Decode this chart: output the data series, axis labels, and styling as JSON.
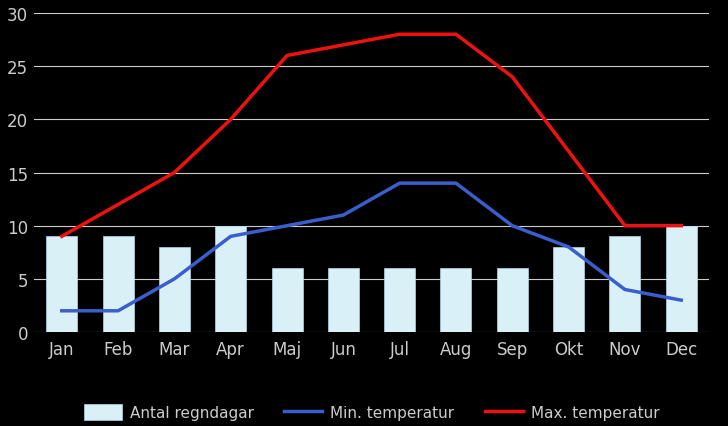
{
  "months": [
    "Jan",
    "Feb",
    "Mar",
    "Apr",
    "Maj",
    "Jun",
    "Jul",
    "Aug",
    "Sep",
    "Okt",
    "Nov",
    "Dec"
  ],
  "rain_days": [
    9,
    9,
    8,
    10,
    6,
    6,
    6,
    6,
    6,
    8,
    9,
    10
  ],
  "min_temp": [
    2,
    2,
    5,
    9,
    10,
    11,
    14,
    14,
    10,
    8,
    4,
    3
  ],
  "max_temp": [
    9,
    12,
    15,
    20,
    26,
    27,
    28,
    28,
    24,
    17,
    10,
    10
  ],
  "bar_color": "#daf0f7",
  "bar_edgecolor": "#b0d8e8",
  "min_line_color": "#3a5fcd",
  "max_line_color": "#ee1111",
  "background_color": "#1a1a2e",
  "plot_bg_color": "#0d0d0d",
  "ylim": [
    0,
    30
  ],
  "yticks": [
    0,
    5,
    10,
    15,
    20,
    25,
    30
  ],
  "legend_labels": [
    "Antal regndagar",
    "Min. temperatur",
    "Max. temperatur"
  ],
  "grid_color": "#888888",
  "tick_color": "#aaaaaa",
  "label_color": "#cccccc"
}
